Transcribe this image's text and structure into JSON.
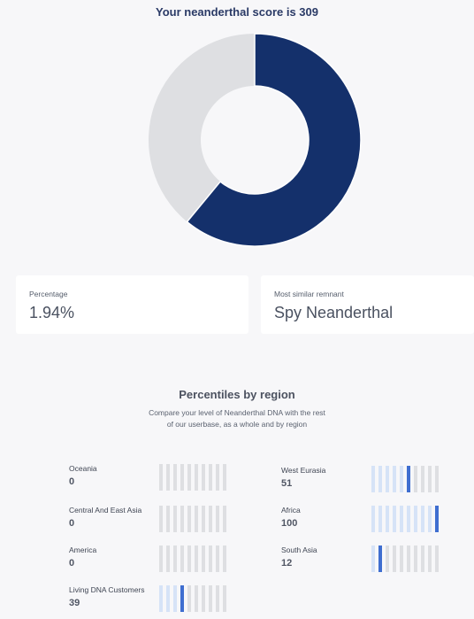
{
  "score": {
    "title": "Your neanderthal score is 309",
    "donut": {
      "filled_fraction": 0.61,
      "filled_color": "#14306b",
      "remaining_color": "#dedfe2"
    }
  },
  "cards": {
    "percentage": {
      "label": "Percentage",
      "value": "1.94%"
    },
    "remnant": {
      "label": "Most similar remnant",
      "value": "Spy Neanderthal"
    }
  },
  "percentiles": {
    "title": "Percentiles by region",
    "subtitle": "Compare your level of Neanderthal DNA with the rest of our userbase, as a whole and by region",
    "regions": [
      {
        "name": "Oceania",
        "value": "0"
      },
      {
        "name": "West Eurasia",
        "value": "51"
      },
      {
        "name": "Central And East Asia",
        "value": "0"
      },
      {
        "name": "Africa",
        "value": "100"
      },
      {
        "name": "America",
        "value": "0"
      },
      {
        "name": "South Asia",
        "value": "12"
      },
      {
        "name": "Living DNA Customers",
        "value": "39"
      }
    ]
  },
  "colors": {
    "accent": "#3f6ed0",
    "navy": "#14306b",
    "bar_light": "#d6e3f7",
    "bar_grey": "#dedfe2"
  }
}
